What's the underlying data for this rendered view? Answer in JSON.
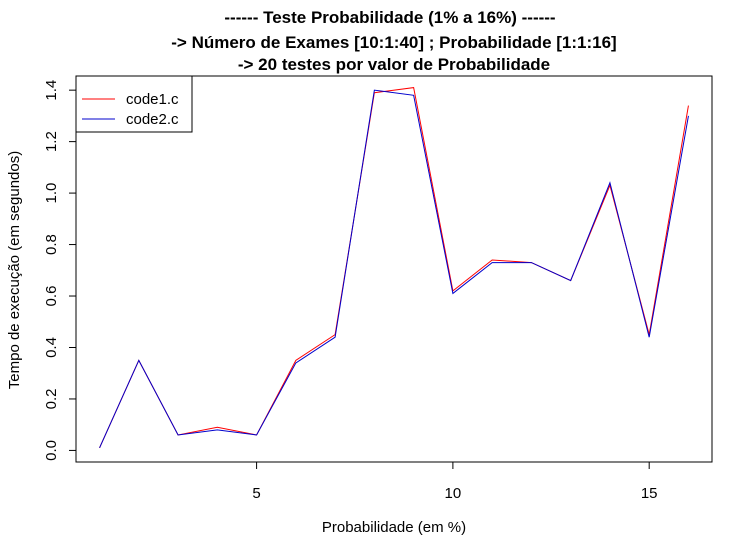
{
  "chart_data": {
    "type": "line",
    "title": [
      "------ Teste Probabilidade (1% a 16%) ------",
      "-> Número de Exames [10:1:40] ; Probabilidade [1:1:16]",
      "-> 20 testes por valor de Probabilidade"
    ],
    "xlabel": "Probabilidade (em %)",
    "ylabel": "Tempo de execução (em segundos)",
    "x": [
      1,
      2,
      3,
      4,
      5,
      6,
      7,
      8,
      9,
      10,
      11,
      12,
      13,
      14,
      15,
      16
    ],
    "xlim": [
      0.4,
      16.6
    ],
    "ylim": [
      -0.045,
      1.455
    ],
    "xticks": [
      5,
      10,
      15
    ],
    "yticks": [
      0.0,
      0.2,
      0.4,
      0.6,
      0.8,
      1.0,
      1.2,
      1.4
    ],
    "series": [
      {
        "name": "code1.c",
        "color": "#ff0000",
        "values": [
          0.01,
          0.35,
          0.06,
          0.09,
          0.06,
          0.35,
          0.45,
          1.39,
          1.41,
          0.62,
          0.74,
          0.73,
          0.66,
          1.03,
          0.45,
          1.34
        ]
      },
      {
        "name": "code2.c",
        "color": "#0000cd",
        "values": [
          0.01,
          0.35,
          0.06,
          0.08,
          0.06,
          0.34,
          0.44,
          1.4,
          1.38,
          0.61,
          0.73,
          0.73,
          0.66,
          1.04,
          0.44,
          1.3
        ]
      }
    ],
    "legend_position": "top-left",
    "grid": false
  }
}
